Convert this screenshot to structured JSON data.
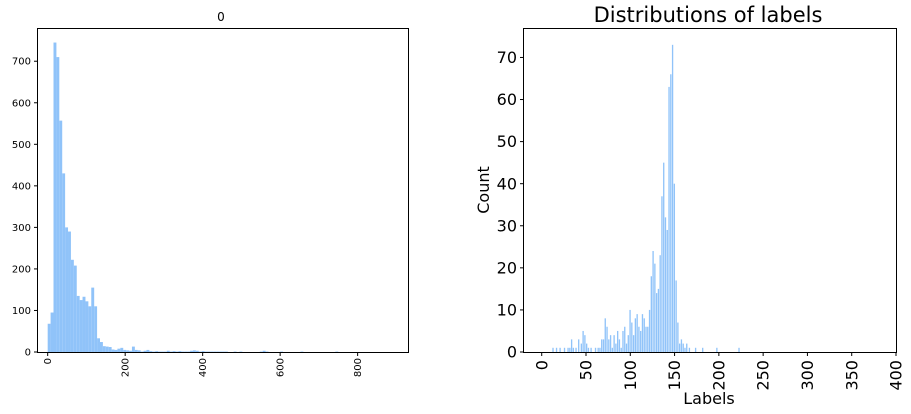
{
  "bar_color": "#90c3f9",
  "chart_data": [
    {
      "type": "bar",
      "title": "0",
      "xlabel": "",
      "ylabel": "",
      "xlim": [
        -25,
        930
      ],
      "ylim": [
        0,
        780
      ],
      "xticks": [
        "0",
        "200",
        "400",
        "600",
        "800"
      ],
      "yticks": [
        "0",
        "100",
        "200",
        "300",
        "400",
        "500",
        "600",
        "700"
      ],
      "grid": false,
      "series": [
        {
          "bin_width": 7.5,
          "bins": [
            [
              0,
              68
            ],
            [
              7.5,
              95
            ],
            [
              15,
              745
            ],
            [
              22.5,
              710
            ],
            [
              30,
              557
            ],
            [
              37.5,
              430
            ],
            [
              45,
              300
            ],
            [
              52.5,
              290
            ],
            [
              60,
              222
            ],
            [
              67.5,
              208
            ],
            [
              75,
              135
            ],
            [
              82.5,
              125
            ],
            [
              90,
              133
            ],
            [
              97.5,
              122
            ],
            [
              105,
              110
            ],
            [
              112.5,
              155
            ],
            [
              120,
              110
            ],
            [
              127.5,
              33
            ],
            [
              135,
              24
            ],
            [
              142.5,
              14
            ],
            [
              150,
              13
            ],
            [
              157.5,
              12
            ],
            [
              165,
              6
            ],
            [
              172.5,
              5
            ],
            [
              180,
              8
            ],
            [
              187.5,
              10
            ],
            [
              195,
              5
            ],
            [
              202.5,
              4
            ],
            [
              210,
              3
            ],
            [
              217.5,
              13
            ],
            [
              225,
              5
            ],
            [
              232.5,
              4
            ],
            [
              240,
              1
            ],
            [
              247.5,
              3
            ],
            [
              255,
              5
            ],
            [
              262.5,
              2
            ],
            [
              270,
              1
            ],
            [
              277.5,
              2
            ],
            [
              285,
              1
            ],
            [
              292.5,
              1
            ],
            [
              300,
              1
            ],
            [
              307.5,
              3
            ],
            [
              315,
              1
            ],
            [
              322.5,
              2
            ],
            [
              330,
              1
            ],
            [
              337.5,
              2
            ],
            [
              345,
              1
            ],
            [
              352.5,
              1
            ],
            [
              360,
              1
            ],
            [
              367.5,
              3
            ],
            [
              375,
              4
            ],
            [
              382.5,
              3
            ],
            [
              390,
              1
            ],
            [
              397.5,
              2
            ],
            [
              405,
              1
            ],
            [
              412.5,
              1
            ],
            [
              420,
              1
            ],
            [
              427.5,
              1
            ],
            [
              435,
              1
            ],
            [
              442.5,
              1
            ],
            [
              450,
              1
            ],
            [
              457.5,
              1
            ],
            [
              480,
              1
            ],
            [
              495,
              1
            ],
            [
              547.5,
              1
            ],
            [
              555,
              3
            ],
            [
              562.5,
              1
            ],
            [
              600,
              1
            ],
            [
              652.5,
              1
            ],
            [
              742.5,
              1
            ]
          ]
        }
      ]
    },
    {
      "type": "bar",
      "title": "Distributions of labels",
      "xlabel": "Labels",
      "ylabel": "Count",
      "xlim": [
        -20,
        400
      ],
      "ylim": [
        0,
        77
      ],
      "xticks": [
        "0",
        "50",
        "100",
        "150",
        "200",
        "250",
        "300",
        "350",
        "400"
      ],
      "yticks": [
        "0",
        "10",
        "20",
        "30",
        "40",
        "50",
        "60",
        "70"
      ],
      "grid": false,
      "series": [
        {
          "bin_width": 1.5,
          "bins": [
            [
              12,
              1
            ],
            [
              16,
              1
            ],
            [
              20,
              1
            ],
            [
              25,
              1
            ],
            [
              29,
              1
            ],
            [
              31,
              1
            ],
            [
              33,
              3
            ],
            [
              35,
              1
            ],
            [
              38,
              1
            ],
            [
              41,
              3
            ],
            [
              44,
              2
            ],
            [
              46,
              5
            ],
            [
              48,
              4
            ],
            [
              50,
              2
            ],
            [
              52,
              1
            ],
            [
              55,
              1
            ],
            [
              60,
              1
            ],
            [
              63,
              1
            ],
            [
              65,
              1
            ],
            [
              67,
              3
            ],
            [
              69,
              3
            ],
            [
              71,
              8
            ],
            [
              73,
              6
            ],
            [
              75,
              3
            ],
            [
              77,
              4
            ],
            [
              79,
              1
            ],
            [
              81,
              4
            ],
            [
              83,
              2
            ],
            [
              85,
              5
            ],
            [
              87,
              3
            ],
            [
              89,
              1
            ],
            [
              91,
              5
            ],
            [
              93,
              6
            ],
            [
              95,
              2
            ],
            [
              97,
              4
            ],
            [
              99,
              10
            ],
            [
              101,
              7
            ],
            [
              103,
              4
            ],
            [
              105,
              8
            ],
            [
              107,
              9
            ],
            [
              109,
              6
            ],
            [
              111,
              5
            ],
            [
              113,
              9
            ],
            [
              115,
              8
            ],
            [
              117,
              6
            ],
            [
              119,
              6
            ],
            [
              121,
              10
            ],
            [
              123,
              18
            ],
            [
              125,
              24
            ],
            [
              127,
              21
            ],
            [
              129,
              14
            ],
            [
              131,
              15
            ],
            [
              133,
              23
            ],
            [
              135,
              37
            ],
            [
              137,
              45
            ],
            [
              139,
              32
            ],
            [
              141,
              29
            ],
            [
              143,
              63
            ],
            [
              145,
              66
            ],
            [
              147,
              73
            ],
            [
              149,
              40
            ],
            [
              151,
              17
            ],
            [
              153,
              7
            ],
            [
              155,
              2
            ],
            [
              157,
              3
            ],
            [
              159,
              2
            ],
            [
              161,
              1
            ],
            [
              163,
              2
            ],
            [
              166,
              1
            ],
            [
              173,
              1
            ],
            [
              181,
              1
            ],
            [
              197,
              1
            ],
            [
              222,
              1
            ]
          ]
        }
      ]
    }
  ]
}
